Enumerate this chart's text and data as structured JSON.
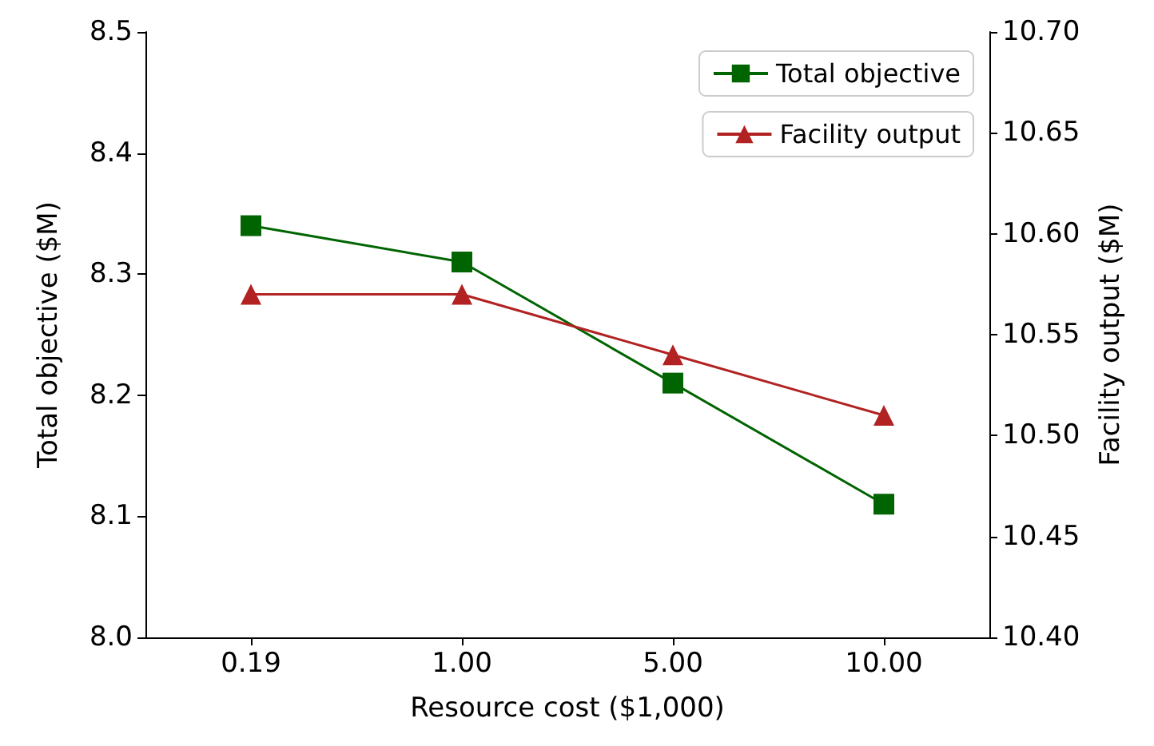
{
  "chart_data": {
    "type": "line",
    "xlabel": "Resource cost ($1,000)",
    "ylabel": "Total objective ($M)",
    "y2label": "Facility output ($M)",
    "categories": [
      "0.19",
      "1.00",
      "5.00",
      "10.00"
    ],
    "series": [
      {
        "name": "Total objective",
        "color": "#006400",
        "values": [
          8.34,
          8.31,
          8.21,
          8.11
        ],
        "marker": "square"
      },
      {
        "name": "Facility output",
        "color": "#b22222",
        "values": [
          10.57,
          10.57,
          10.54,
          10.51
        ],
        "marker": "triangle",
        "axis": "y2"
      }
    ],
    "ylim": [
      8.0,
      8.5
    ],
    "yticks": [
      {
        "value": 8,
        "label": "8.0"
      },
      8.1,
      8.2,
      8.3,
      8.4,
      8.5
    ],
    "y2lim": [
      10.4,
      10.7
    ],
    "y2ticks": [
      {
        "value": 10.4,
        "label": "10.40"
      },
      10.45,
      {
        "value": 10.5,
        "label": "10.50"
      },
      10.55,
      {
        "value": 10.6,
        "label": "10.60"
      },
      10.65,
      {
        "value": 10.7,
        "label": "10.70"
      }
    ],
    "grid": false,
    "legend": "top right",
    "line_style": "solid"
  }
}
